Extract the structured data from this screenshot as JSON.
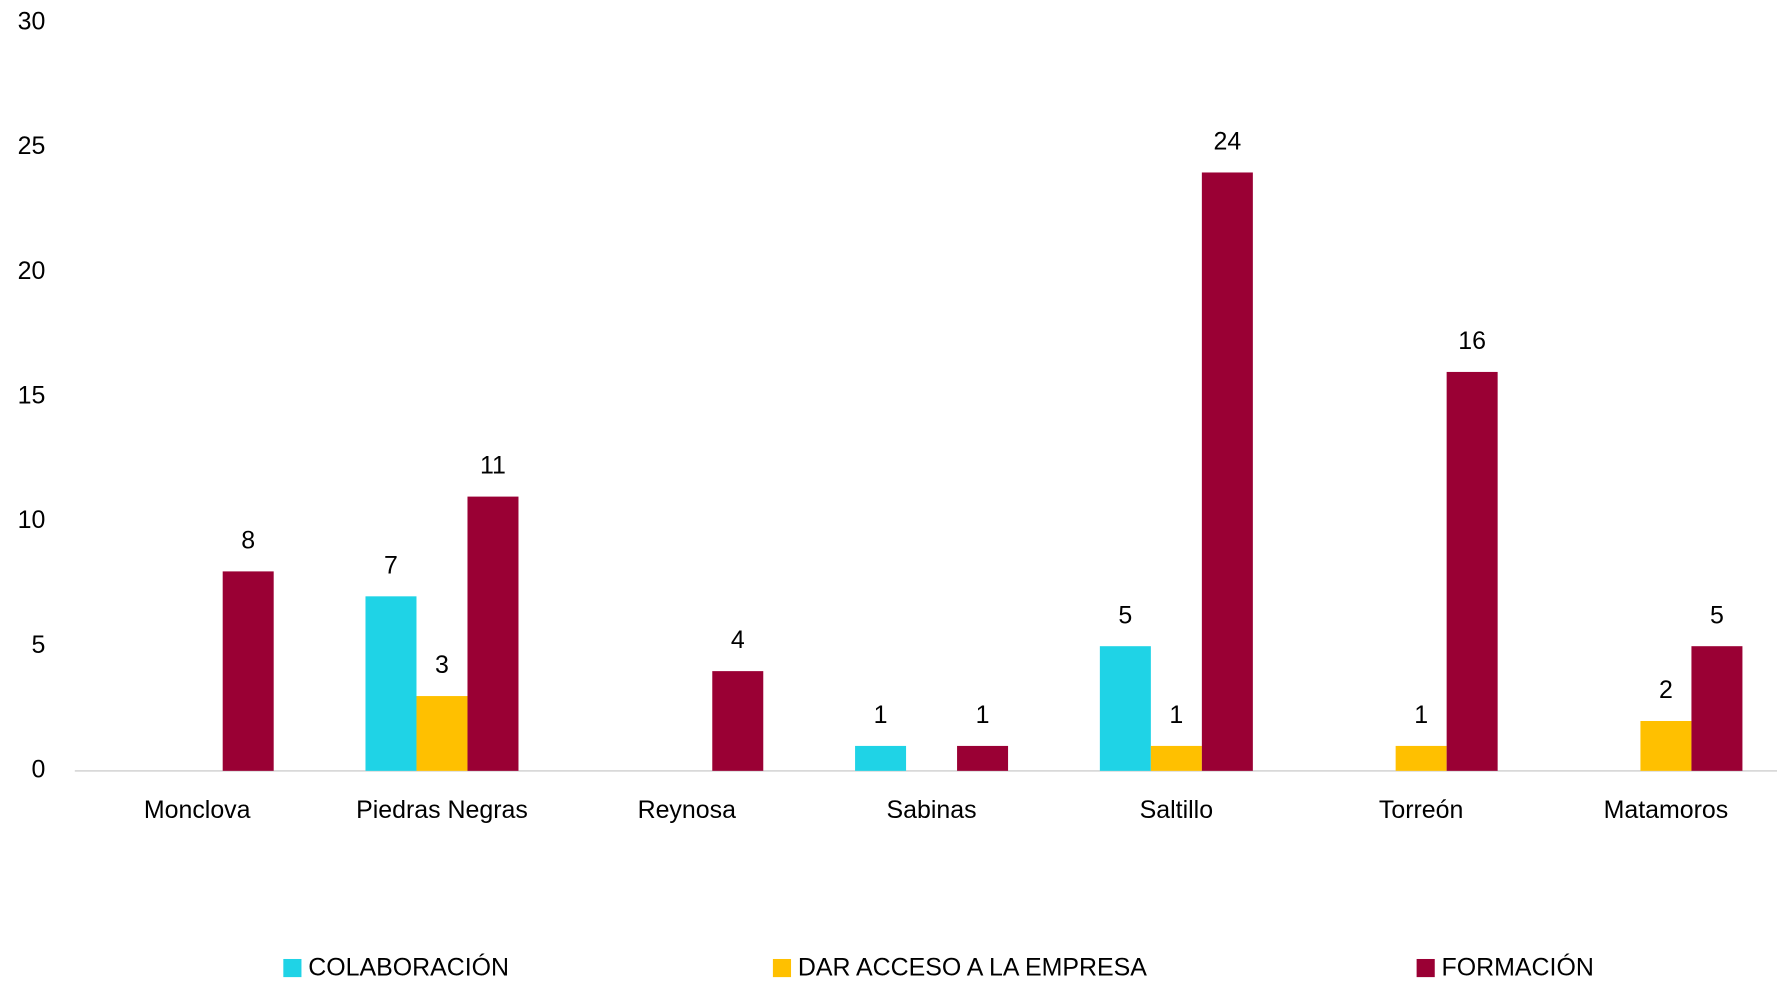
{
  "chart_data": {
    "type": "bar",
    "categories": [
      "Monclova",
      "Piedras Negras",
      "Reynosa",
      "Sabinas",
      "Saltillo",
      "Torreón",
      "Matamoros"
    ],
    "series": [
      {
        "name": "COLABORACIÓN",
        "color": "#1fd3e6",
        "values": [
          null,
          7,
          null,
          1,
          5,
          null,
          null
        ]
      },
      {
        "name": "DAR ACCESO A LA EMPRESA",
        "color": "#ffc000",
        "values": [
          null,
          3,
          null,
          null,
          1,
          1,
          2
        ]
      },
      {
        "name": "FORMACIÓN",
        "color": "#9a0034",
        "values": [
          8,
          11,
          4,
          1,
          24,
          16,
          5
        ]
      }
    ],
    "ylim": [
      0,
      30
    ],
    "yticks": [
      0,
      5,
      10,
      15,
      20,
      25,
      30
    ],
    "grid": false,
    "legend": "bottom"
  }
}
